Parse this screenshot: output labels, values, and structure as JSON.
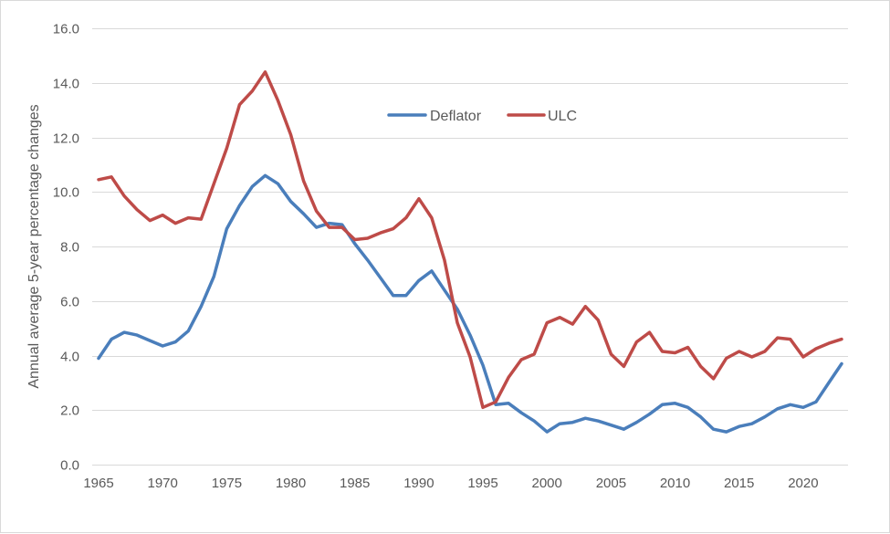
{
  "chart_data": {
    "type": "line",
    "title": "",
    "xlabel": "",
    "ylabel": "Annual average 5-year percentage changes",
    "ylim": [
      0,
      16
    ],
    "grid": true,
    "legend_position": "top-center",
    "y_ticks": [
      "0.0",
      "2.0",
      "4.0",
      "6.0",
      "8.0",
      "10.0",
      "12.0",
      "14.0",
      "16.0"
    ],
    "x_ticks": [
      "1965",
      "1970",
      "1975",
      "1980",
      "1985",
      "1990",
      "1995",
      "2000",
      "2005",
      "2010",
      "2015",
      "2020"
    ],
    "x": [
      1965,
      1966,
      1967,
      1968,
      1969,
      1970,
      1971,
      1972,
      1973,
      1974,
      1975,
      1976,
      1977,
      1978,
      1979,
      1980,
      1981,
      1982,
      1983,
      1984,
      1985,
      1986,
      1987,
      1988,
      1989,
      1990,
      1991,
      1992,
      1993,
      1994,
      1995,
      1996,
      1997,
      1998,
      1999,
      2000,
      2001,
      2002,
      2003,
      2004,
      2005,
      2006,
      2007,
      2008,
      2009,
      2010,
      2011,
      2012,
      2013,
      2014,
      2015,
      2016,
      2017,
      2018,
      2019,
      2020,
      2021,
      2022,
      2023
    ],
    "series": [
      {
        "name": "Deflator",
        "color": "#4a7ebb",
        "values": [
          3.9,
          4.6,
          4.85,
          4.75,
          4.55,
          4.35,
          4.5,
          4.9,
          5.8,
          6.9,
          8.65,
          9.5,
          10.2,
          10.6,
          10.3,
          9.65,
          9.2,
          8.7,
          8.85,
          8.8,
          8.1,
          7.5,
          6.85,
          6.2,
          6.2,
          6.75,
          7.1,
          6.4,
          5.7,
          4.75,
          3.65,
          2.2,
          2.25,
          1.9,
          1.6,
          1.2,
          1.5,
          1.55,
          1.7,
          1.6,
          1.45,
          1.3,
          1.55,
          1.85,
          2.2,
          2.25,
          2.1,
          1.75,
          1.3,
          1.2,
          1.4,
          1.5,
          1.75,
          2.05,
          2.2,
          2.1,
          2.3,
          3.0,
          3.7
        ]
      },
      {
        "name": "ULC",
        "color": "#be4b48",
        "values": [
          10.45,
          10.55,
          9.85,
          9.35,
          8.95,
          9.15,
          8.85,
          9.05,
          9.0,
          10.3,
          11.6,
          13.2,
          13.7,
          14.4,
          13.35,
          12.1,
          10.4,
          9.3,
          8.7,
          8.7,
          8.25,
          8.3,
          8.5,
          8.65,
          9.05,
          9.75,
          9.05,
          7.5,
          5.2,
          3.95,
          2.1,
          2.3,
          3.2,
          3.85,
          4.05,
          5.2,
          5.4,
          5.15,
          5.8,
          5.3,
          4.05,
          3.6,
          4.5,
          4.85,
          4.15,
          4.1,
          4.3,
          3.6,
          3.15,
          3.9,
          4.15,
          3.95,
          4.15,
          4.65,
          4.6,
          3.95,
          4.25,
          4.45,
          4.6
        ]
      }
    ]
  }
}
